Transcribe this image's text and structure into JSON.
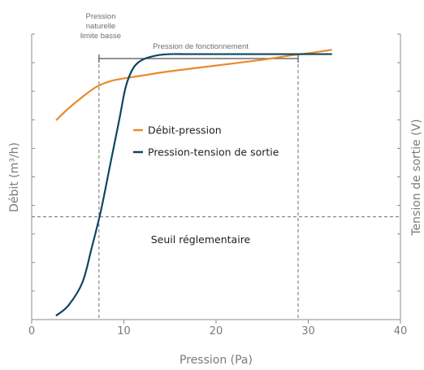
{
  "chart_data": {
    "type": "line",
    "xlabel": "Pression (Pa)",
    "ylabel_left": "Débit (m³/h)",
    "ylabel_right": "Tension de sortie (V)",
    "xlim": [
      0,
      40
    ],
    "x_ticks": [
      "0",
      "10",
      "20",
      "30",
      "40"
    ],
    "ylim": [
      0,
      10
    ],
    "y_tick_count": 11,
    "grid": false,
    "legend_position": "center-left",
    "series": [
      {
        "name": "Débit-pression",
        "color": "#e88a2c",
        "axis": "left",
        "x": [
          2.7,
          4,
          5.5,
          7,
          8.5,
          10,
          12,
          15,
          20,
          25,
          28,
          30,
          32.5
        ],
        "y": [
          7.0,
          7.4,
          7.8,
          8.15,
          8.35,
          8.45,
          8.55,
          8.7,
          8.9,
          9.1,
          9.25,
          9.33,
          9.45
        ]
      },
      {
        "name": "Pression-tension de sortie",
        "color": "#0e4660",
        "axis": "right",
        "x": [
          2.7,
          4,
          5.5,
          6.5,
          7.5,
          8.5,
          9.5,
          10.2,
          11,
          12,
          13.5,
          15,
          17,
          20,
          25,
          30,
          32.5
        ],
        "y": [
          0.15,
          0.5,
          1.3,
          2.5,
          3.8,
          5.4,
          7.0,
          8.15,
          8.8,
          9.1,
          9.25,
          9.3,
          9.3,
          9.3,
          9.3,
          9.3,
          9.3
        ]
      }
    ],
    "annotations": {
      "low_pressure_label": [
        "Pression",
        "naturelle",
        "limite basse"
      ],
      "low_pressure_x": 7.3,
      "operating_label": "Pression de fonctionnement",
      "operating_range": [
        7.3,
        28.9
      ],
      "threshold_label": "Seuil réglementaire",
      "threshold_y": 3.6
    }
  }
}
